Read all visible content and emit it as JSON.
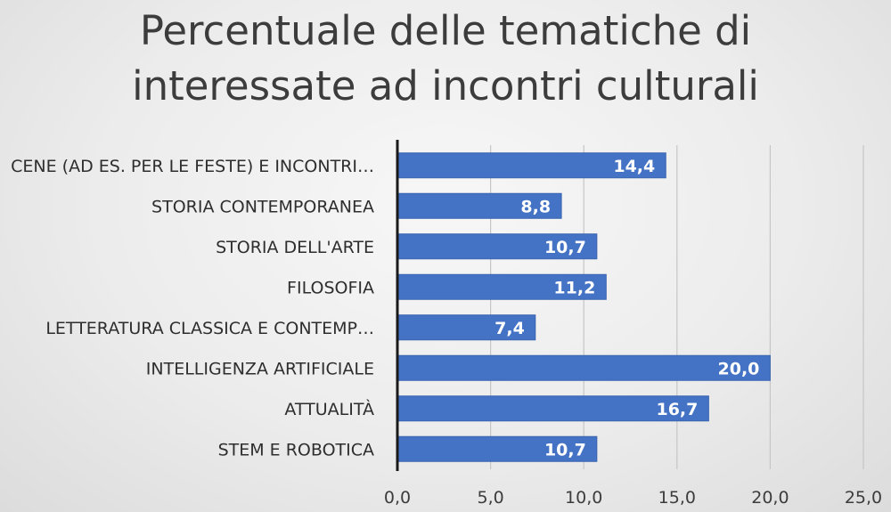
{
  "chart_data": {
    "type": "bar",
    "orientation": "horizontal",
    "title": [
      "Percentuale delle tematiche di",
      "interessate ad incontri culturali"
    ],
    "categories": [
      "CENE (AD ES. PER LE FESTE) E INCONTRI…",
      "STORIA CONTEMPORANEA",
      "STORIA DELL'ARTE",
      "FILOSOFIA",
      "LETTERATURA CLASSICA E CONTEMP…",
      "INTELLIGENZA ARTIFICIALE",
      "ATTUALITÀ",
      "STEM E ROBOTICA"
    ],
    "values": [
      14.4,
      8.8,
      10.7,
      11.2,
      7.4,
      20.0,
      16.7,
      10.7
    ],
    "data_labels": [
      "14,4",
      "8,8",
      "10,7",
      "11,2",
      "7,4",
      "20,0",
      "16,7",
      "10,7"
    ],
    "xlim": [
      0,
      25
    ],
    "x_ticks": [
      "0,0",
      "5,0",
      "10,0",
      "15,0",
      "20,0",
      "25,0"
    ],
    "grid": true,
    "bar_color": "#4472c4",
    "label_color": "#ffffff"
  }
}
